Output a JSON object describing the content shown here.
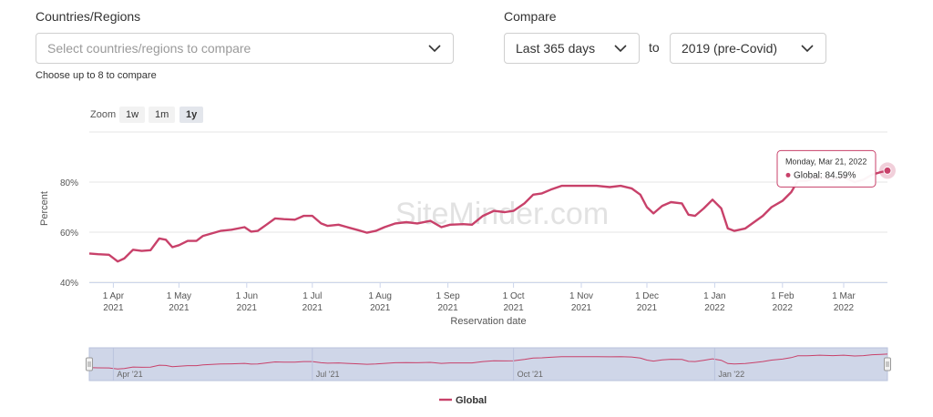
{
  "filters": {
    "countries_label": "Countries/Regions",
    "countries_placeholder": "Select countries/regions to compare",
    "countries_hint": "Choose up to 8 to compare",
    "compare_label": "Compare",
    "range_value": "Last 365 days",
    "to_text": "to",
    "baseline_value": "2019 (pre-Covid)"
  },
  "zoom": {
    "label": "Zoom",
    "buttons": [
      "1w",
      "1m",
      "1y"
    ],
    "active": "1y"
  },
  "watermark": "SiteMinder.com",
  "tooltip": {
    "date": "Monday, Mar 21, 2022",
    "series": "Global",
    "value": "84.59%"
  },
  "navigator_labels": [
    "Apr '21",
    "Jul '21",
    "Oct '21",
    "Jan '22"
  ],
  "colors": {
    "series": "#c8416a",
    "navigator_fill": "#cfd6e8"
  },
  "chart_data": {
    "type": "line",
    "ylabel": "Percent",
    "xlabel": "Reservation date",
    "y_ticks": [
      "40%",
      "60%",
      "80%"
    ],
    "ylim": [
      40,
      100
    ],
    "x_ticks": [
      {
        "label": "1 Apr",
        "year": "2021",
        "date": "2021-04-01"
      },
      {
        "label": "1 May",
        "year": "2021",
        "date": "2021-05-01"
      },
      {
        "label": "1 Jun",
        "year": "2021",
        "date": "2021-06-01"
      },
      {
        "label": "1 Jul",
        "year": "2021",
        "date": "2021-07-01"
      },
      {
        "label": "1 Aug",
        "year": "2021",
        "date": "2021-08-01"
      },
      {
        "label": "1 Sep",
        "year": "2021",
        "date": "2021-09-01"
      },
      {
        "label": "1 Oct",
        "year": "2021",
        "date": "2021-10-01"
      },
      {
        "label": "1 Nov",
        "year": "2021",
        "date": "2021-11-01"
      },
      {
        "label": "1 Dec",
        "year": "2021",
        "date": "2021-12-01"
      },
      {
        "label": "1 Jan",
        "year": "2022",
        "date": "2022-01-01"
      },
      {
        "label": "1 Feb",
        "year": "2022",
        "date": "2022-02-01"
      },
      {
        "label": "1 Mar",
        "year": "2022",
        "date": "2022-03-01"
      }
    ],
    "xlim": [
      "2021-03-21",
      "2022-03-21"
    ],
    "grid": "horizontal",
    "legend": "bottom-center",
    "series": [
      {
        "name": "Global",
        "points": [
          [
            "2021-03-21",
            51.5
          ],
          [
            "2021-03-25",
            51.2
          ],
          [
            "2021-03-30",
            51.0
          ],
          [
            "2021-04-03",
            48.3
          ],
          [
            "2021-04-06",
            49.5
          ],
          [
            "2021-04-10",
            53.0
          ],
          [
            "2021-04-14",
            52.5
          ],
          [
            "2021-04-18",
            52.8
          ],
          [
            "2021-04-22",
            57.5
          ],
          [
            "2021-04-25",
            57.0
          ],
          [
            "2021-04-28",
            54.0
          ],
          [
            "2021-05-01",
            54.8
          ],
          [
            "2021-05-05",
            56.5
          ],
          [
            "2021-05-09",
            56.5
          ],
          [
            "2021-05-12",
            58.5
          ],
          [
            "2021-05-16",
            59.5
          ],
          [
            "2021-05-20",
            60.5
          ],
          [
            "2021-05-25",
            61.0
          ],
          [
            "2021-05-31",
            62.0
          ],
          [
            "2021-06-03",
            60.2
          ],
          [
            "2021-06-06",
            60.5
          ],
          [
            "2021-06-10",
            63.0
          ],
          [
            "2021-06-14",
            65.5
          ],
          [
            "2021-06-18",
            65.2
          ],
          [
            "2021-06-23",
            65.0
          ],
          [
            "2021-06-27",
            66.5
          ],
          [
            "2021-07-01",
            66.5
          ],
          [
            "2021-07-05",
            63.5
          ],
          [
            "2021-07-08",
            62.5
          ],
          [
            "2021-07-13",
            63.0
          ],
          [
            "2021-07-17",
            62.0
          ],
          [
            "2021-07-22",
            60.8
          ],
          [
            "2021-07-26",
            59.8
          ],
          [
            "2021-07-30",
            60.5
          ],
          [
            "2021-08-03",
            62.0
          ],
          [
            "2021-08-08",
            63.5
          ],
          [
            "2021-08-13",
            64.0
          ],
          [
            "2021-08-18",
            63.5
          ],
          [
            "2021-08-24",
            64.5
          ],
          [
            "2021-08-29",
            62.0
          ],
          [
            "2021-09-02",
            63.0
          ],
          [
            "2021-09-08",
            63.2
          ],
          [
            "2021-09-12",
            63.0
          ],
          [
            "2021-09-17",
            66.5
          ],
          [
            "2021-09-22",
            68.5
          ],
          [
            "2021-09-27",
            68.0
          ],
          [
            "2021-10-01",
            68.5
          ],
          [
            "2021-10-06",
            71.5
          ],
          [
            "2021-10-10",
            75.0
          ],
          [
            "2021-10-14",
            75.5
          ],
          [
            "2021-10-18",
            77.0
          ],
          [
            "2021-10-23",
            78.5
          ],
          [
            "2021-10-28",
            78.5
          ],
          [
            "2021-11-02",
            78.5
          ],
          [
            "2021-11-08",
            78.5
          ],
          [
            "2021-11-14",
            78.0
          ],
          [
            "2021-11-19",
            78.5
          ],
          [
            "2021-11-24",
            77.5
          ],
          [
            "2021-11-28",
            75.0
          ],
          [
            "2021-12-01",
            70.0
          ],
          [
            "2021-12-04",
            67.5
          ],
          [
            "2021-12-08",
            70.5
          ],
          [
            "2021-12-12",
            72.0
          ],
          [
            "2021-12-17",
            71.5
          ],
          [
            "2021-12-20",
            67.0
          ],
          [
            "2021-12-23",
            66.5
          ],
          [
            "2021-12-27",
            69.5
          ],
          [
            "2021-12-31",
            73.0
          ],
          [
            "2022-01-04",
            69.5
          ],
          [
            "2022-01-07",
            61.5
          ],
          [
            "2022-01-10",
            60.5
          ],
          [
            "2022-01-15",
            61.5
          ],
          [
            "2022-01-19",
            64.0
          ],
          [
            "2022-01-23",
            66.5
          ],
          [
            "2022-01-27",
            70.0
          ],
          [
            "2022-02-01",
            72.5
          ],
          [
            "2022-02-05",
            76.0
          ],
          [
            "2022-02-08",
            80.5
          ],
          [
            "2022-02-12",
            80.5
          ],
          [
            "2022-02-18",
            82.0
          ],
          [
            "2022-02-24",
            81.0
          ],
          [
            "2022-03-01",
            82.0
          ],
          [
            "2022-03-06",
            80.0
          ],
          [
            "2022-03-10",
            81.0
          ],
          [
            "2022-03-14",
            83.0
          ],
          [
            "2022-03-18",
            84.0
          ],
          [
            "2022-03-21",
            84.59
          ]
        ]
      }
    ]
  }
}
